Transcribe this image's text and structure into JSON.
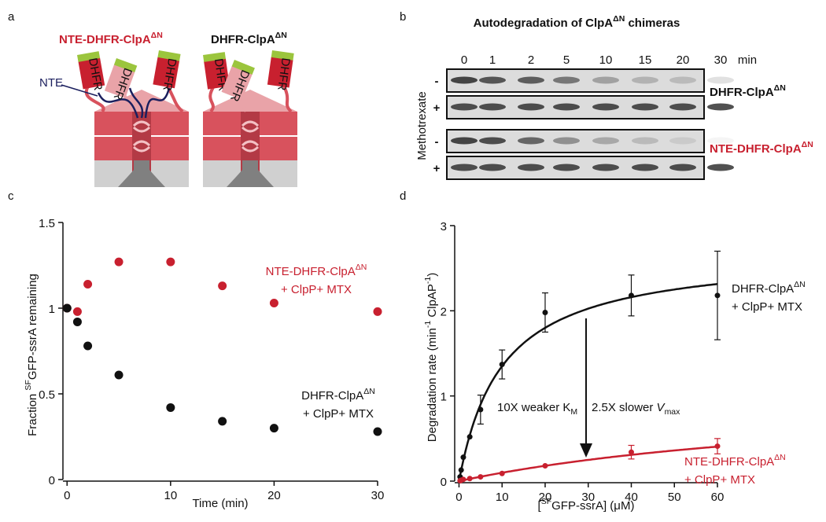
{
  "panel_labels": [
    "a",
    "b",
    "c",
    "d"
  ],
  "panel_a": {
    "titles": [
      [
        {
          "text": "NTE-DHFR-ClpA"
        },
        {
          "text": "ΔN",
          "style": "sup"
        }
      ],
      [
        {
          "text": "DHFR-ClpA"
        },
        {
          "text": "ΔN",
          "style": "sup"
        }
      ]
    ],
    "nte_label": "NTE",
    "domain_label": "DHFR"
  },
  "panel_b": {
    "title": [
      {
        "text": "Autodegradation of ClpA"
      },
      {
        "text": "ΔN",
        "style": "sup"
      },
      {
        "text": " chimeras"
      }
    ],
    "lanes": [
      "0",
      "1",
      "2",
      "5",
      "10",
      "15",
      "20",
      "30"
    ],
    "lane_unit": "min",
    "treatment": "Methotrexate",
    "signs": [
      "-",
      "+",
      "-",
      "+"
    ],
    "constructs": [
      [
        {
          "text": "DHFR-ClpA"
        },
        {
          "text": "ΔN",
          "style": "sup"
        }
      ],
      [
        {
          "text": "NTE-DHFR-ClpA"
        },
        {
          "text": "ΔN",
          "style": "sup"
        }
      ]
    ]
  },
  "chart_data": [
    {
      "type": "scatter",
      "xlabel": [
        {
          "text": "Time (min)"
        }
      ],
      "ylabel": [
        {
          "text": "Fraction "
        },
        {
          "text": "SF",
          "style": "sup"
        },
        {
          "text": "GFP-ssrA remaining"
        }
      ],
      "xlim": [
        -0.4,
        30
      ],
      "ylim": [
        0,
        1.5
      ],
      "xticks": [
        0,
        10,
        20,
        30
      ],
      "yticks": [
        0,
        0.5,
        1,
        1.5
      ],
      "series": [
        {
          "name": [
            [
              {
                "text": "NTE-DHFR-ClpA"
              },
              {
                "text": "ΔN",
                "style": "sup"
              }
            ],
            [
              {
                "text": "+ ClpP+ MTX"
              }
            ]
          ],
          "color": "#c8202f",
          "x": [
            0,
            1,
            2,
            5,
            10,
            15,
            20,
            30
          ],
          "values": [
            1.0,
            0.98,
            1.14,
            1.27,
            1.27,
            1.13,
            1.03,
            0.98
          ]
        },
        {
          "name": [
            [
              {
                "text": "DHFR-ClpA"
              },
              {
                "text": "ΔN",
                "style": "sup"
              }
            ],
            [
              {
                "text": "+ ClpP+ MTX"
              }
            ]
          ],
          "color": "#111111",
          "x": [
            0,
            1,
            2,
            5,
            10,
            15,
            20,
            30
          ],
          "values": [
            1.0,
            0.92,
            0.78,
            0.61,
            0.42,
            0.34,
            0.3,
            0.28
          ]
        }
      ]
    },
    {
      "type": "scatter",
      "xlabel": [
        {
          "text": "["
        },
        {
          "text": "SF",
          "style": "sup"
        },
        {
          "text": "GFP-ssrA] (μM)"
        }
      ],
      "ylabel": [
        {
          "text": "Degradation rate (min"
        },
        {
          "text": "-1",
          "style": "sup"
        },
        {
          "text": " ClpAP"
        },
        {
          "text": "-1",
          "style": "sup"
        },
        {
          "text": ")"
        }
      ],
      "xlim": [
        -1,
        60
      ],
      "ylim": [
        0,
        3
      ],
      "xticks": [
        0,
        10,
        20,
        30,
        40,
        50,
        60
      ],
      "yticks": [
        0,
        1,
        2,
        3
      ],
      "annotations": [
        [
          {
            "text": "10X weaker K"
          },
          {
            "text": "M",
            "style": "sub"
          }
        ],
        [
          {
            "text": "2.5X slower "
          },
          {
            "text": "V",
            "style": "italic"
          },
          {
            "text": "max",
            "style": "sub"
          }
        ]
      ],
      "series": [
        {
          "name": [
            [
              {
                "text": "DHFR-ClpA"
              },
              {
                "text": "ΔN",
                "style": "sup"
              }
            ],
            [
              {
                "text": "+ ClpP+ MTX"
              }
            ]
          ],
          "color": "#111111",
          "x": [
            0.25,
            0.5,
            1,
            2.5,
            5,
            10,
            20,
            40,
            60
          ],
          "values": [
            0.05,
            0.13,
            0.28,
            0.52,
            0.84,
            1.37,
            1.98,
            2.18,
            2.18
          ],
          "errors": [
            null,
            null,
            null,
            null,
            0.17,
            0.17,
            0.23,
            0.24,
            0.52
          ],
          "fit": {
            "vmax": 2.7,
            "km": 10
          }
        },
        {
          "name": [
            [
              {
                "text": "NTE-DHFR-ClpA"
              },
              {
                "text": "ΔN",
                "style": "sup"
              }
            ],
            [
              {
                "text": "+ ClpP+ MTX"
              }
            ]
          ],
          "color": "#c8202f",
          "x": [
            0.25,
            0.5,
            1,
            2.5,
            5,
            10,
            20,
            40,
            60
          ],
          "values": [
            0.005,
            0.01,
            0.02,
            0.03,
            0.05,
            0.09,
            0.18,
            0.34,
            0.41
          ],
          "errors": [
            null,
            null,
            null,
            null,
            null,
            null,
            null,
            0.08,
            0.09
          ],
          "fit": {
            "vmax": 1.08,
            "km": 100
          }
        }
      ]
    }
  ]
}
